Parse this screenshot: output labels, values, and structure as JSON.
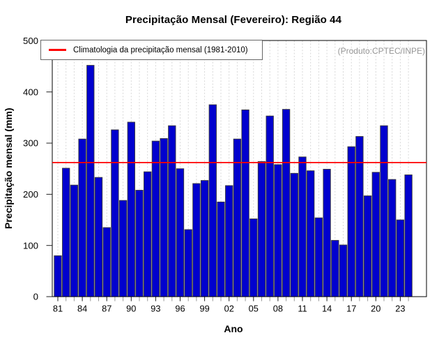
{
  "chart_data": {
    "type": "bar",
    "title": "Precipitação Mensal (Fevereiro): Região 44",
    "xlabel": "Ano",
    "ylabel": "Precipitação mensal (mm)",
    "ylim": [
      0,
      500
    ],
    "yticks": [
      0,
      100,
      200,
      300,
      400,
      500
    ],
    "grid": "vertical-dashed",
    "legend_position": "top-left",
    "bar_color": "#0101CE",
    "bar_border_color": "#3a3a3a",
    "categories": [
      "81",
      "82",
      "83",
      "84",
      "85",
      "86",
      "87",
      "88",
      "89",
      "90",
      "91",
      "92",
      "93",
      "94",
      "95",
      "96",
      "97",
      "98",
      "99",
      "00",
      "01",
      "02",
      "03",
      "04",
      "05",
      "06",
      "07",
      "08",
      "09",
      "10",
      "11",
      "12",
      "13",
      "14",
      "15",
      "16",
      "17",
      "18",
      "19",
      "20",
      "21",
      "22",
      "23",
      "24"
    ],
    "values": [
      80,
      251,
      218,
      308,
      452,
      233,
      135,
      326,
      188,
      341,
      208,
      244,
      304,
      309,
      334,
      250,
      131,
      221,
      227,
      375,
      185,
      217,
      308,
      365,
      152,
      264,
      353,
      258,
      366,
      241,
      273,
      246,
      154,
      249,
      110,
      101,
      293,
      313,
      197,
      243,
      334,
      229,
      150,
      238
    ],
    "x_tick_labels": [
      "81",
      "84",
      "87",
      "90",
      "93",
      "96",
      "99",
      "02",
      "05",
      "08",
      "11",
      "14",
      "17",
      "20",
      "23"
    ],
    "x_tick_step": 3,
    "reference_line": {
      "label": "Climatologia da precipitação mensal (1981-2010)",
      "value": 262,
      "color": "#FF0000"
    },
    "annotation": "(Produto:CPTEC/INPE)"
  }
}
